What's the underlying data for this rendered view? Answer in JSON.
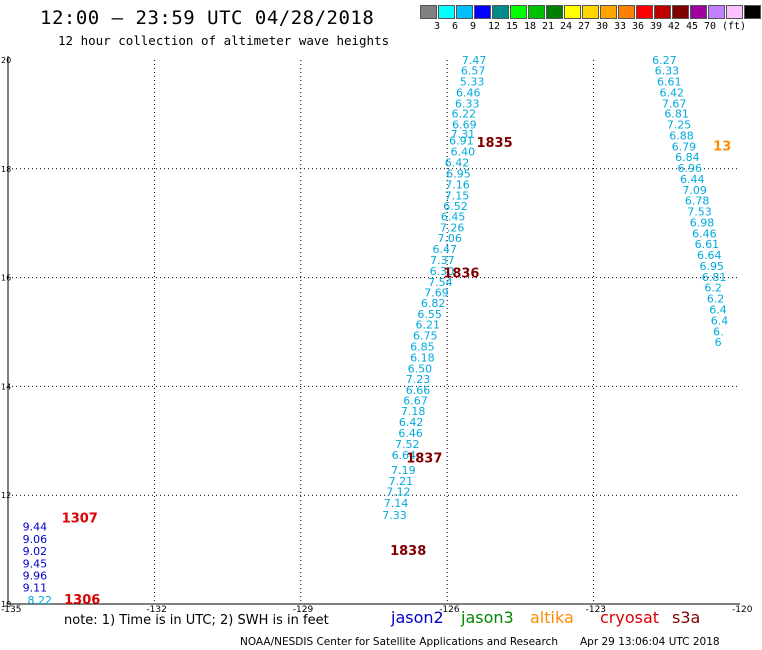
{
  "header": {
    "title": "12:00 – 23:59 UTC 04/28/2018",
    "subtitle": "12 hour collection of altimeter wave heights"
  },
  "colorbar": {
    "colors": [
      "#808080",
      "#00ffff",
      "#00bfff",
      "#0000ff",
      "#008b8b",
      "#00ff00",
      "#00c000",
      "#008000",
      "#ffff00",
      "#ffd700",
      "#ffa500",
      "#ff7f00",
      "#ff0000",
      "#c00000",
      "#800000",
      "#a000a0",
      "#c080ff",
      "#ffc0ff",
      "#000000"
    ],
    "labels": [
      "3",
      "6",
      "9",
      "12",
      "15",
      "18",
      "21",
      "24",
      "27",
      "30",
      "33",
      "36",
      "39",
      "42",
      "45",
      "70",
      "(ft)"
    ],
    "color_names": [
      "gray",
      "cyan",
      "deepskyblue",
      "blue",
      "darkcyan",
      "lime",
      "green",
      "darkgreen",
      "yellow",
      "gold",
      "orange",
      "darkorange",
      "red",
      "darkred",
      "maroon",
      "purple",
      "violet",
      "pink",
      "black"
    ]
  },
  "chart_data": {
    "type": "scatter",
    "title": "12:00 – 23:59 UTC 04/28/2018",
    "subtitle": "12 hour collection of altimeter wave heights",
    "xlim": [
      -135,
      -120
    ],
    "ylim": [
      10,
      20
    ],
    "x_ticks": [
      "-135",
      "-132",
      "-129",
      "-126",
      "-123",
      "-120"
    ],
    "y_ticks": [
      "10",
      "12",
      "14",
      "16",
      "18",
      "20"
    ],
    "grid": true,
    "units": "ft",
    "series": [
      {
        "name": "s3a",
        "color": "#00aadd",
        "labels": [
          "7.47",
          "6.57",
          "5.33",
          "6.46",
          "6.33",
          "6.22",
          "6.69",
          "7.31",
          "6.91",
          "6.40",
          "6.42",
          "6.95",
          "7.16",
          "7.15",
          "6.52",
          "6.45",
          "7.26",
          "7.06",
          "6.47",
          "7.37",
          "6.30",
          "7.54",
          "7.69",
          "6.82",
          "6.55",
          "6.21",
          "6.75",
          "6.85",
          "6.18",
          "6.50",
          "7.23",
          "6.66",
          "6.67",
          "7.18",
          "6.42",
          "6.46",
          "7.52",
          "6.64",
          "7.19",
          "7.21",
          "7.12",
          "7.14",
          "7.33"
        ],
        "x": [
          -125.7,
          -125.72,
          -125.74,
          -125.82,
          -125.84,
          -125.91,
          -125.9,
          -125.93,
          -125.96,
          -125.93,
          -126.05,
          -126.02,
          -126.04,
          -126.05,
          -126.08,
          -126.13,
          -126.15,
          -126.2,
          -126.3,
          -126.35,
          -126.36,
          -126.39,
          -126.47,
          -126.54,
          -126.61,
          -126.65,
          -126.7,
          -126.76,
          -126.76,
          -126.81,
          -126.85,
          -126.85,
          -126.9,
          -126.95,
          -126.99,
          -127.0,
          -127.07,
          -127.14,
          -127.15,
          -127.2,
          -127.25,
          -127.3,
          -127.33
        ],
        "y": [
          19.93,
          19.73,
          19.53,
          19.33,
          19.13,
          18.94,
          18.74,
          18.57,
          18.45,
          18.24,
          18.04,
          17.84,
          17.64,
          17.44,
          17.24,
          17.05,
          16.85,
          16.65,
          16.45,
          16.25,
          16.05,
          15.85,
          15.65,
          15.46,
          15.26,
          15.06,
          14.86,
          14.66,
          14.46,
          14.26,
          14.06,
          13.86,
          13.67,
          13.47,
          13.27,
          13.07,
          12.87,
          12.67,
          12.39,
          12.19,
          11.99,
          11.78,
          11.56
        ]
      },
      {
        "name": "s3a",
        "color": "#00aadd",
        "labels": [
          "6.27",
          "6.33",
          "6.61",
          "6.42",
          "7.67",
          "6.81",
          "7.25",
          "6.88",
          "6.79",
          "6.84",
          "6.96",
          "6.44",
          "7.09",
          "6.78",
          "7.53",
          "6.98",
          "6.46",
          "6.61",
          "6.64",
          "6.95",
          "6.81",
          "6.2",
          "6.2",
          "6.4",
          "6.4",
          "6.",
          "6"
        ],
        "x": [
          -121.8,
          -121.75,
          -121.7,
          -121.65,
          -121.6,
          -121.55,
          -121.5,
          -121.45,
          -121.4,
          -121.33,
          -121.28,
          -121.23,
          -121.18,
          -121.13,
          -121.08,
          -121.03,
          -120.98,
          -120.93,
          -120.88,
          -120.83,
          -120.78,
          -120.73,
          -120.68,
          -120.63,
          -120.6,
          -120.55,
          -120.52
        ],
        "y": [
          19.93,
          19.73,
          19.53,
          19.33,
          19.13,
          18.94,
          18.74,
          18.54,
          18.34,
          18.14,
          17.94,
          17.74,
          17.54,
          17.34,
          17.14,
          16.94,
          16.74,
          16.54,
          16.34,
          16.14,
          15.94,
          15.74,
          15.54,
          15.34,
          15.14,
          14.94,
          14.74
        ]
      },
      {
        "name": "jason2",
        "color": "#0000cc",
        "labels": [
          "9.44",
          "9.06",
          "9.02",
          "9.45",
          "9.96",
          "9.11"
        ],
        "x": [
          -134.7,
          -134.7,
          -134.7,
          -134.7,
          -134.7,
          -134.7
        ],
        "y": [
          11.35,
          11.12,
          10.9,
          10.67,
          10.45,
          10.23
        ]
      },
      {
        "name": "s3a",
        "color": "#00aadd",
        "labels": [
          "8.22"
        ],
        "x": [
          -134.6
        ],
        "y": [
          10.0
        ]
      }
    ],
    "time_labels": [
      {
        "text": "1835",
        "x": -125.4,
        "y": 18.4,
        "color": "#800000"
      },
      {
        "text": "1836",
        "x": -126.08,
        "y": 16.0,
        "color": "#800000"
      },
      {
        "text": "1837",
        "x": -126.84,
        "y": 12.6,
        "color": "#800000"
      },
      {
        "text": "1838",
        "x": -127.17,
        "y": 10.9,
        "color": "#800000"
      },
      {
        "text": "1307",
        "x": -133.9,
        "y": 11.5,
        "color": "#dd0000"
      },
      {
        "text": "1306",
        "x": -133.85,
        "y": 10.0,
        "color": "#dd0000"
      },
      {
        "text": "13",
        "x": -120.55,
        "y": 18.34,
        "color": "#ff8c00"
      }
    ]
  },
  "legend": {
    "note": "note: 1) Time is in UTC; 2) SWH is in feet",
    "satellites": [
      {
        "name": "jason2",
        "color": "#0000cc"
      },
      {
        "name": "jason3",
        "color": "#008800"
      },
      {
        "name": "altika",
        "color": "#ff8c00"
      },
      {
        "name": "cryosat",
        "color": "#dd0000"
      },
      {
        "name": "s3a",
        "color": "#800000"
      }
    ]
  },
  "footer": {
    "credit": "NOAA/NESDIS Center for Satellite Applications and Research",
    "timestamp": "Apr 29 13:06:04 UTC 2018"
  }
}
